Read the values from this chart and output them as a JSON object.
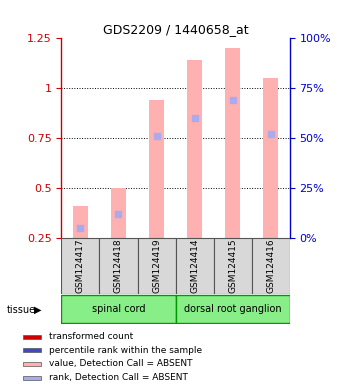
{
  "title": "GDS2209 / 1440658_at",
  "samples": [
    "GSM124417",
    "GSM124418",
    "GSM124419",
    "GSM124414",
    "GSM124415",
    "GSM124416"
  ],
  "tissue_groups": [
    {
      "label": "spinal cord",
      "indices": [
        0,
        1,
        2
      ]
    },
    {
      "label": "dorsal root ganglion",
      "indices": [
        3,
        4,
        5
      ]
    }
  ],
  "bar_values": [
    0.41,
    0.5,
    0.94,
    1.14,
    1.2,
    1.05
  ],
  "rank_values": [
    0.3,
    0.37,
    0.76,
    0.85,
    0.94,
    0.77
  ],
  "bar_color_absent": "#ffb0b0",
  "rank_color_absent": "#aaaaee",
  "ylim_left": [
    0.25,
    1.25
  ],
  "ylim_right": [
    0,
    100
  ],
  "yticks_left": [
    0.25,
    0.5,
    0.75,
    1.0,
    1.25
  ],
  "yticks_right": [
    0,
    25,
    50,
    75,
    100
  ],
  "ylabel_left_color": "#cc0000",
  "ylabel_right_color": "#0000cc",
  "grid_yticks": [
    0.5,
    0.75,
    1.0
  ],
  "tissue_color": "#88ee88",
  "tissue_outline": "#009900",
  "sample_bg": "#d8d8d8",
  "sample_border": "#555555",
  "legend_items": [
    {
      "label": "transformed count",
      "color": "#cc0000"
    },
    {
      "label": "percentile rank within the sample",
      "color": "#4444cc"
    },
    {
      "label": "value, Detection Call = ABSENT",
      "color": "#ffb0b0"
    },
    {
      "label": "rank, Detection Call = ABSENT",
      "color": "#aaaaee"
    }
  ],
  "bar_width": 0.4,
  "rank_marker_size": 4
}
